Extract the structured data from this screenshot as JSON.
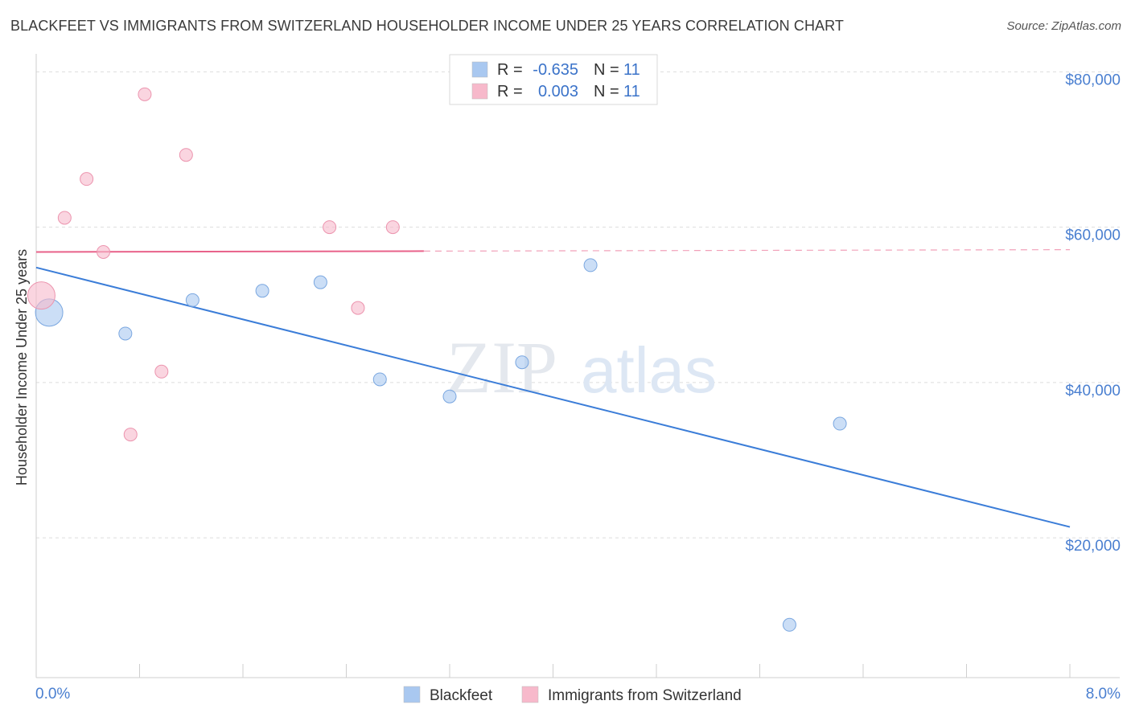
{
  "header": {
    "title": "BLACKFEET VS IMMIGRANTS FROM SWITZERLAND HOUSEHOLDER INCOME UNDER 25 YEARS CORRELATION CHART",
    "source": "Source: ZipAtlas.com"
  },
  "watermark": {
    "zip": "ZIP",
    "atlas": "atlas"
  },
  "legend": {
    "rows": [
      {
        "r_label": "R = ",
        "r_value": "-0.635",
        "n_label": "N = ",
        "n_value": "11",
        "color": "#a9c8f0"
      },
      {
        "r_label": "R = ",
        "r_value": "0.003",
        "n_label": "N = ",
        "n_value": "11",
        "color": "#f7b9cb"
      }
    ]
  },
  "bottom_legend": [
    {
      "label": "Blackfeet",
      "color": "#a9c8f0"
    },
    {
      "label": "Immigrants from Switzerland",
      "color": "#f7b9cb"
    }
  ],
  "chart_data": {
    "type": "scatter",
    "title": "BLACKFEET VS IMMIGRANTS FROM SWITZERLAND HOUSEHOLDER INCOME UNDER 25 YEARS CORRELATION CHART",
    "xlabel": "",
    "ylabel": "Householder Income Under 25 years",
    "xlim": [
      0,
      8
    ],
    "ylim": [
      2000,
      82000
    ],
    "x_tick_labels": [
      "0.0%",
      "8.0%"
    ],
    "y_ticks": [
      {
        "value": 20000,
        "label": "$20,000"
      },
      {
        "value": 40000,
        "label": "$40,000"
      },
      {
        "value": 60000,
        "label": "$60,000"
      },
      {
        "value": 80000,
        "label": "$80,000"
      }
    ],
    "grid": true,
    "legend_position": "top-center",
    "series": [
      {
        "name": "Blackfeet",
        "color": "#a9c8f0",
        "stroke": "#7aa7e0",
        "line_color": "#3b7dd8",
        "points": [
          {
            "x": 0.1,
            "y": 49000,
            "size": "large"
          },
          {
            "x": 0.69,
            "y": 46300
          },
          {
            "x": 1.21,
            "y": 50600
          },
          {
            "x": 1.75,
            "y": 51800
          },
          {
            "x": 2.2,
            "y": 52900
          },
          {
            "x": 2.66,
            "y": 40400
          },
          {
            "x": 3.2,
            "y": 38200
          },
          {
            "x": 3.76,
            "y": 42600
          },
          {
            "x": 4.29,
            "y": 55100
          },
          {
            "x": 5.83,
            "y": 8800
          },
          {
            "x": 6.22,
            "y": 34700
          }
        ],
        "trend": {
          "x": [
            0,
            8
          ],
          "y": [
            54800,
            21400
          ],
          "dashed_from": null
        }
      },
      {
        "name": "Immigrants from Switzerland",
        "color": "#f7b9cb",
        "stroke": "#ec94ae",
        "line_color": "#e8628a",
        "points": [
          {
            "x": 0.04,
            "y": 51200,
            "size": "large"
          },
          {
            "x": 0.22,
            "y": 61200
          },
          {
            "x": 0.39,
            "y": 66200
          },
          {
            "x": 0.52,
            "y": 56800
          },
          {
            "x": 0.73,
            "y": 33300
          },
          {
            "x": 0.84,
            "y": 77100
          },
          {
            "x": 0.97,
            "y": 41400
          },
          {
            "x": 1.16,
            "y": 69300
          },
          {
            "x": 2.27,
            "y": 60000
          },
          {
            "x": 2.49,
            "y": 49600
          },
          {
            "x": 2.76,
            "y": 60000
          }
        ],
        "trend": {
          "x": [
            0,
            8
          ],
          "y": [
            56800,
            57100
          ],
          "dashed_from": 3.0
        }
      }
    ]
  }
}
